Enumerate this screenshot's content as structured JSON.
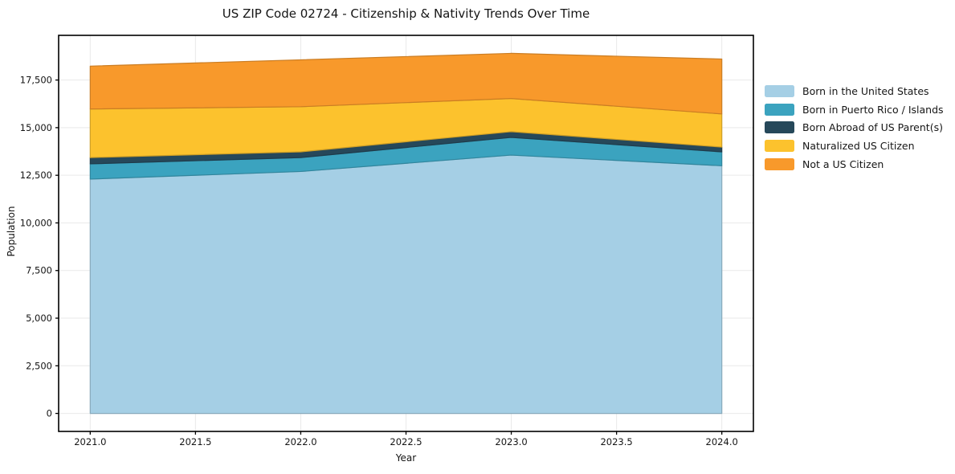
{
  "chart_data": {
    "type": "area",
    "stacked": true,
    "title": "US ZIP Code 02724 - Citizenship & Nativity Trends Over Time",
    "xlabel": "Year",
    "ylabel": "Population",
    "x": [
      2021,
      2022,
      2023,
      2024
    ],
    "series": [
      {
        "name": "Born in the United States",
        "color": "#a5cfe5",
        "values": [
          12300,
          12700,
          13560,
          13000
        ]
      },
      {
        "name": "Born in Puerto Rico / Islands",
        "color": "#3ba3bf",
        "values": [
          800,
          730,
          930,
          730
        ]
      },
      {
        "name": "Born Abroad of US Parent(s)",
        "color": "#26485a",
        "values": [
          330,
          300,
          300,
          250
        ]
      },
      {
        "name": "Naturalized US Citizen",
        "color": "#fcc22d",
        "values": [
          2550,
          2370,
          1740,
          1740
        ]
      },
      {
        "name": "Not a US Citizen",
        "color": "#f8992b",
        "values": [
          2250,
          2460,
          2370,
          2880
        ]
      }
    ],
    "totals": [
      18230,
      18560,
      18900,
      18600
    ],
    "xticks": [
      2021.0,
      2021.5,
      2022.0,
      2022.5,
      2023.0,
      2023.5,
      2024.0
    ],
    "xtick_labels": [
      "2021.0",
      "2021.5",
      "2022.0",
      "2022.5",
      "2023.0",
      "2023.5",
      "2024.0"
    ],
    "yticks": [
      0,
      2500,
      5000,
      7500,
      10000,
      12500,
      15000,
      17500
    ],
    "ytick_labels": [
      "0",
      "2,500",
      "5,000",
      "7,500",
      "10,000",
      "12,500",
      "15,000",
      "17,500"
    ],
    "xlim": [
      2020.85,
      2024.15
    ],
    "ylim": [
      -945,
      19845
    ],
    "grid": true,
    "grid_color": "#e9e9e9",
    "border_color": "#000000",
    "legend_position": "right"
  }
}
